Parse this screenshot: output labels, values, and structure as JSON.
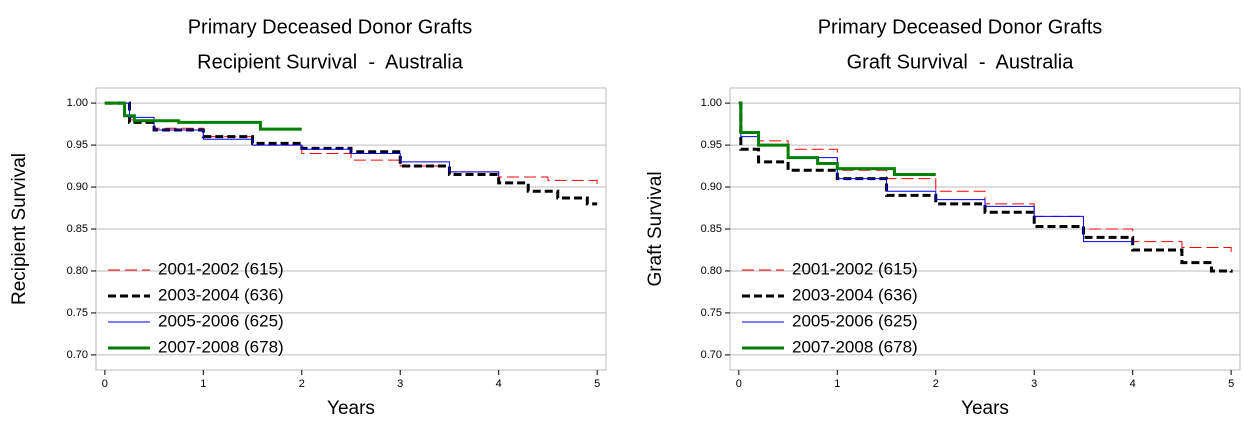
{
  "chart_data": [
    {
      "type": "step",
      "title": [
        "Primary Deceased Donor Grafts",
        "Recipient Survival  -  Australia"
      ],
      "x_label": "Years",
      "y_label": "Recipient Survival",
      "xlim": [
        -0.09,
        5.09
      ],
      "xticks": [
        0,
        1,
        2,
        3,
        4,
        5
      ],
      "ylim": [
        0.682,
        1.018
      ],
      "yticks": [
        {
          "value": 0.7,
          "label": "0.70"
        },
        0.75,
        {
          "value": 0.8,
          "label": "0.80"
        },
        0.85,
        {
          "value": 0.9,
          "label": "0.90"
        },
        0.95,
        {
          "value": 1.0,
          "label": "1.00"
        }
      ],
      "grid": true,
      "legend": "lower left",
      "series": [
        {
          "name": "2001-2002 (615)",
          "color": "#ff0000",
          "dash": "12,5",
          "line_width": 1,
          "x": [
            0,
            0.25,
            0.5,
            1,
            1.5,
            2,
            2.5,
            3,
            3.5,
            4,
            4.5,
            5
          ],
          "values": [
            1.0,
            0.98,
            0.97,
            0.96,
            0.95,
            0.94,
            0.932,
            0.925,
            0.918,
            0.912,
            0.908,
            0.903
          ]
        },
        {
          "name": "2003-2004 (636)",
          "color": "#000000",
          "dash": "8,4",
          "line_width": 3,
          "x": [
            0,
            0.25,
            0.5,
            1,
            1.5,
            2,
            2.5,
            3,
            3.5,
            4,
            4.3,
            4.6,
            4.9,
            5
          ],
          "values": [
            1.0,
            0.977,
            0.968,
            0.96,
            0.952,
            0.946,
            0.942,
            0.925,
            0.915,
            0.905,
            0.895,
            0.887,
            0.88,
            0.88
          ]
        },
        {
          "name": "2005-2006 (625)",
          "color": "#0000ff",
          "dash": "none",
          "line_width": 1,
          "x": [
            0,
            0.25,
            0.5,
            1,
            1.5,
            2,
            2.5,
            3,
            3.5,
            4
          ],
          "values": [
            1.0,
            0.983,
            0.968,
            0.957,
            0.95,
            0.945,
            0.94,
            0.93,
            0.918,
            0.913
          ]
        },
        {
          "name": "2007-2008 (678)",
          "color": "#008000",
          "dash": "none",
          "line_width": 3,
          "x": [
            0,
            0.2,
            0.3,
            0.75,
            1.58,
            2
          ],
          "values": [
            1.0,
            0.985,
            0.979,
            0.977,
            0.969,
            0.969
          ]
        }
      ]
    },
    {
      "type": "step",
      "title": [
        "Primary Deceased Donor Grafts",
        "Graft Survival  -  Australia"
      ],
      "x_label": "Years",
      "y_label": "Graft Survival",
      "xlim": [
        -0.09,
        5.09
      ],
      "xticks": [
        0,
        1,
        2,
        3,
        4,
        5
      ],
      "ylim": [
        0.682,
        1.018
      ],
      "yticks": [
        {
          "value": 0.7,
          "label": "0.70"
        },
        0.75,
        {
          "value": 0.8,
          "label": "0.80"
        },
        0.85,
        {
          "value": 0.9,
          "label": "0.90"
        },
        0.95,
        {
          "value": 1.0,
          "label": "1.00"
        }
      ],
      "grid": true,
      "legend": "lower left",
      "series": [
        {
          "name": "2001-2002 (615)",
          "color": "#ff0000",
          "dash": "12,5",
          "line_width": 1,
          "x": [
            0,
            0.02,
            0.2,
            0.5,
            1,
            1.5,
            2,
            2.5,
            3,
            3.5,
            4,
            4.5,
            4.8,
            5
          ],
          "values": [
            1.0,
            0.965,
            0.955,
            0.945,
            0.92,
            0.91,
            0.895,
            0.88,
            0.865,
            0.85,
            0.835,
            0.828,
            0.828,
            0.82
          ]
        },
        {
          "name": "2003-2004 (636)",
          "color": "#000000",
          "dash": "8,4",
          "line_width": 3,
          "x": [
            0,
            0.02,
            0.2,
            0.5,
            1,
            1.5,
            2,
            2.5,
            3,
            3.5,
            4,
            4.5,
            4.8,
            5
          ],
          "values": [
            1.0,
            0.945,
            0.93,
            0.92,
            0.91,
            0.89,
            0.88,
            0.87,
            0.853,
            0.84,
            0.825,
            0.81,
            0.8,
            0.798
          ]
        },
        {
          "name": "2005-2006 (625)",
          "color": "#0000ff",
          "dash": "none",
          "line_width": 1,
          "x": [
            0,
            0.02,
            0.2,
            0.5,
            1,
            1.5,
            2,
            2.5,
            3,
            3.5,
            4
          ],
          "values": [
            1.0,
            0.96,
            0.95,
            0.935,
            0.91,
            0.895,
            0.885,
            0.877,
            0.865,
            0.835,
            0.832
          ]
        },
        {
          "name": "2007-2008 (678)",
          "color": "#008000",
          "dash": "none",
          "line_width": 3,
          "x": [
            0,
            0.02,
            0.2,
            0.5,
            0.8,
            1,
            1.58,
            2
          ],
          "values": [
            1.0,
            0.965,
            0.95,
            0.935,
            0.928,
            0.922,
            0.915,
            0.915
          ]
        }
      ]
    }
  ]
}
